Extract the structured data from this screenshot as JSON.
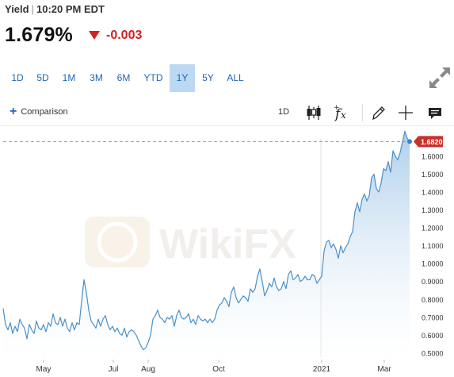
{
  "header": {
    "name": "Yield",
    "time": "10:20 PM EDT"
  },
  "quote": {
    "price": "1.679%",
    "change": "-0.003",
    "direction": "down"
  },
  "range_tabs": [
    {
      "label": "1D"
    },
    {
      "label": "5D"
    },
    {
      "label": "1M"
    },
    {
      "label": "3M"
    },
    {
      "label": "6M"
    },
    {
      "label": "YTD"
    },
    {
      "label": "1Y",
      "active": true
    },
    {
      "label": "5Y"
    },
    {
      "label": "ALL"
    }
  ],
  "toolbar": {
    "comparison_label": "Comparison",
    "interval_label": "1D",
    "icons": [
      "candlestick-icon",
      "fx-icon",
      "pencil-icon",
      "crosshair-icon",
      "annotation-icon"
    ]
  },
  "watermark": "WikiFX",
  "colors": {
    "accent": "#1f66b8",
    "negative": "#d32222",
    "line": "#4a90c8",
    "area_top": "#a9cbea",
    "last_price_badge": "#c8322a",
    "active_tab": "#bcd8f3"
  },
  "chart_data": {
    "type": "area",
    "x_tick_labels": [
      "May",
      "Jul",
      "Aug",
      "Oct",
      "2021",
      "Mar"
    ],
    "y_tick_labels": [
      "0.5000",
      "0.6000",
      "0.7000",
      "0.8000",
      "0.9000",
      "1.0000",
      "1.1000",
      "1.2000",
      "1.3000",
      "1.4000",
      "1.5000",
      "1.6000"
    ],
    "ylim": [
      0.46,
      1.71
    ],
    "last_value": 1.682,
    "last_value_label": "1.6820",
    "grid": "vertical-minimal",
    "series": [
      {
        "values": [
          0.75,
          0.66,
          0.63,
          0.67,
          0.61,
          0.65,
          0.62,
          0.69,
          0.66,
          0.64,
          0.58,
          0.66,
          0.63,
          0.61,
          0.68,
          0.64,
          0.63,
          0.66,
          0.62,
          0.67,
          0.65,
          0.72,
          0.67,
          0.66,
          0.7,
          0.65,
          0.69,
          0.64,
          0.62,
          0.67,
          0.63,
          0.67,
          0.66,
          0.79,
          0.91,
          0.84,
          0.74,
          0.68,
          0.66,
          0.64,
          0.69,
          0.65,
          0.69,
          0.71,
          0.66,
          0.63,
          0.65,
          0.62,
          0.64,
          0.61,
          0.6,
          0.64,
          0.59,
          0.62,
          0.63,
          0.62,
          0.6,
          0.57,
          0.54,
          0.52,
          0.53,
          0.56,
          0.6,
          0.69,
          0.71,
          0.74,
          0.7,
          0.69,
          0.67,
          0.7,
          0.69,
          0.71,
          0.65,
          0.71,
          0.74,
          0.7,
          0.69,
          0.7,
          0.72,
          0.67,
          0.69,
          0.66,
          0.71,
          0.69,
          0.68,
          0.69,
          0.67,
          0.69,
          0.67,
          0.69,
          0.74,
          0.77,
          0.78,
          0.81,
          0.79,
          0.76,
          0.84,
          0.87,
          0.81,
          0.78,
          0.8,
          0.82,
          0.81,
          0.79,
          0.86,
          0.84,
          0.86,
          0.93,
          0.97,
          0.9,
          0.82,
          0.85,
          0.89,
          0.87,
          0.92,
          0.87,
          0.85,
          0.86,
          0.9,
          0.86,
          0.94,
          0.96,
          0.91,
          0.92,
          0.94,
          0.9,
          0.91,
          0.93,
          0.91,
          0.91,
          0.94,
          0.93,
          0.89,
          0.91,
          0.93,
          1.07,
          1.12,
          1.13,
          1.09,
          1.11,
          1.08,
          1.03,
          1.1,
          1.06,
          1.09,
          1.11,
          1.15,
          1.18,
          1.29,
          1.34,
          1.29,
          1.36,
          1.39,
          1.35,
          1.38,
          1.48,
          1.5,
          1.42,
          1.4,
          1.45,
          1.53,
          1.52,
          1.57,
          1.51,
          1.63,
          1.6,
          1.58,
          1.62,
          1.68,
          1.74,
          1.7,
          1.682
        ]
      }
    ]
  }
}
